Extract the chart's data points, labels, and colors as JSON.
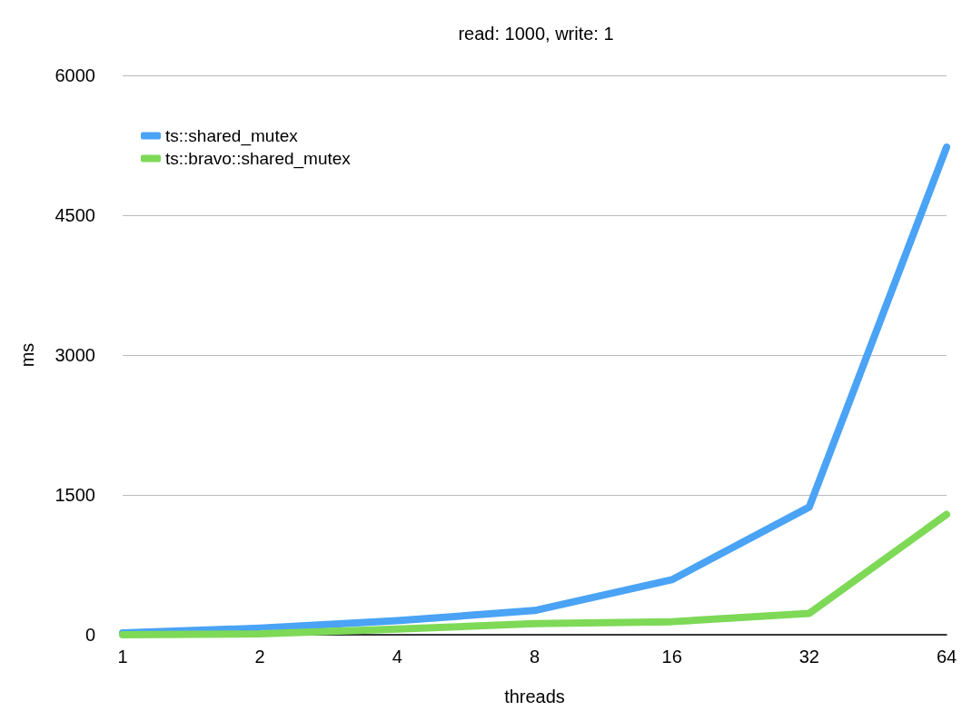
{
  "chart_data": {
    "type": "line",
    "title": "read: 1000, write: 1",
    "xlabel": "threads",
    "ylabel": "ms",
    "categories": [
      "1",
      "2",
      "4",
      "8",
      "16",
      "32",
      "64"
    ],
    "series": [
      {
        "name": "ts::shared_mutex",
        "color": "#4aa3f5",
        "values": [
          20,
          70,
          150,
          260,
          590,
          1370,
          5230
        ]
      },
      {
        "name": "ts::bravo::shared_mutex",
        "color": "#7ed957",
        "values": [
          0,
          10,
          60,
          120,
          140,
          230,
          1290
        ]
      }
    ],
    "ylim": [
      0,
      6000
    ],
    "yticks": [
      0,
      1500,
      3000,
      4500,
      6000
    ],
    "grid": "y",
    "legend": "top left",
    "marker": "none",
    "line_style": "solid"
  }
}
